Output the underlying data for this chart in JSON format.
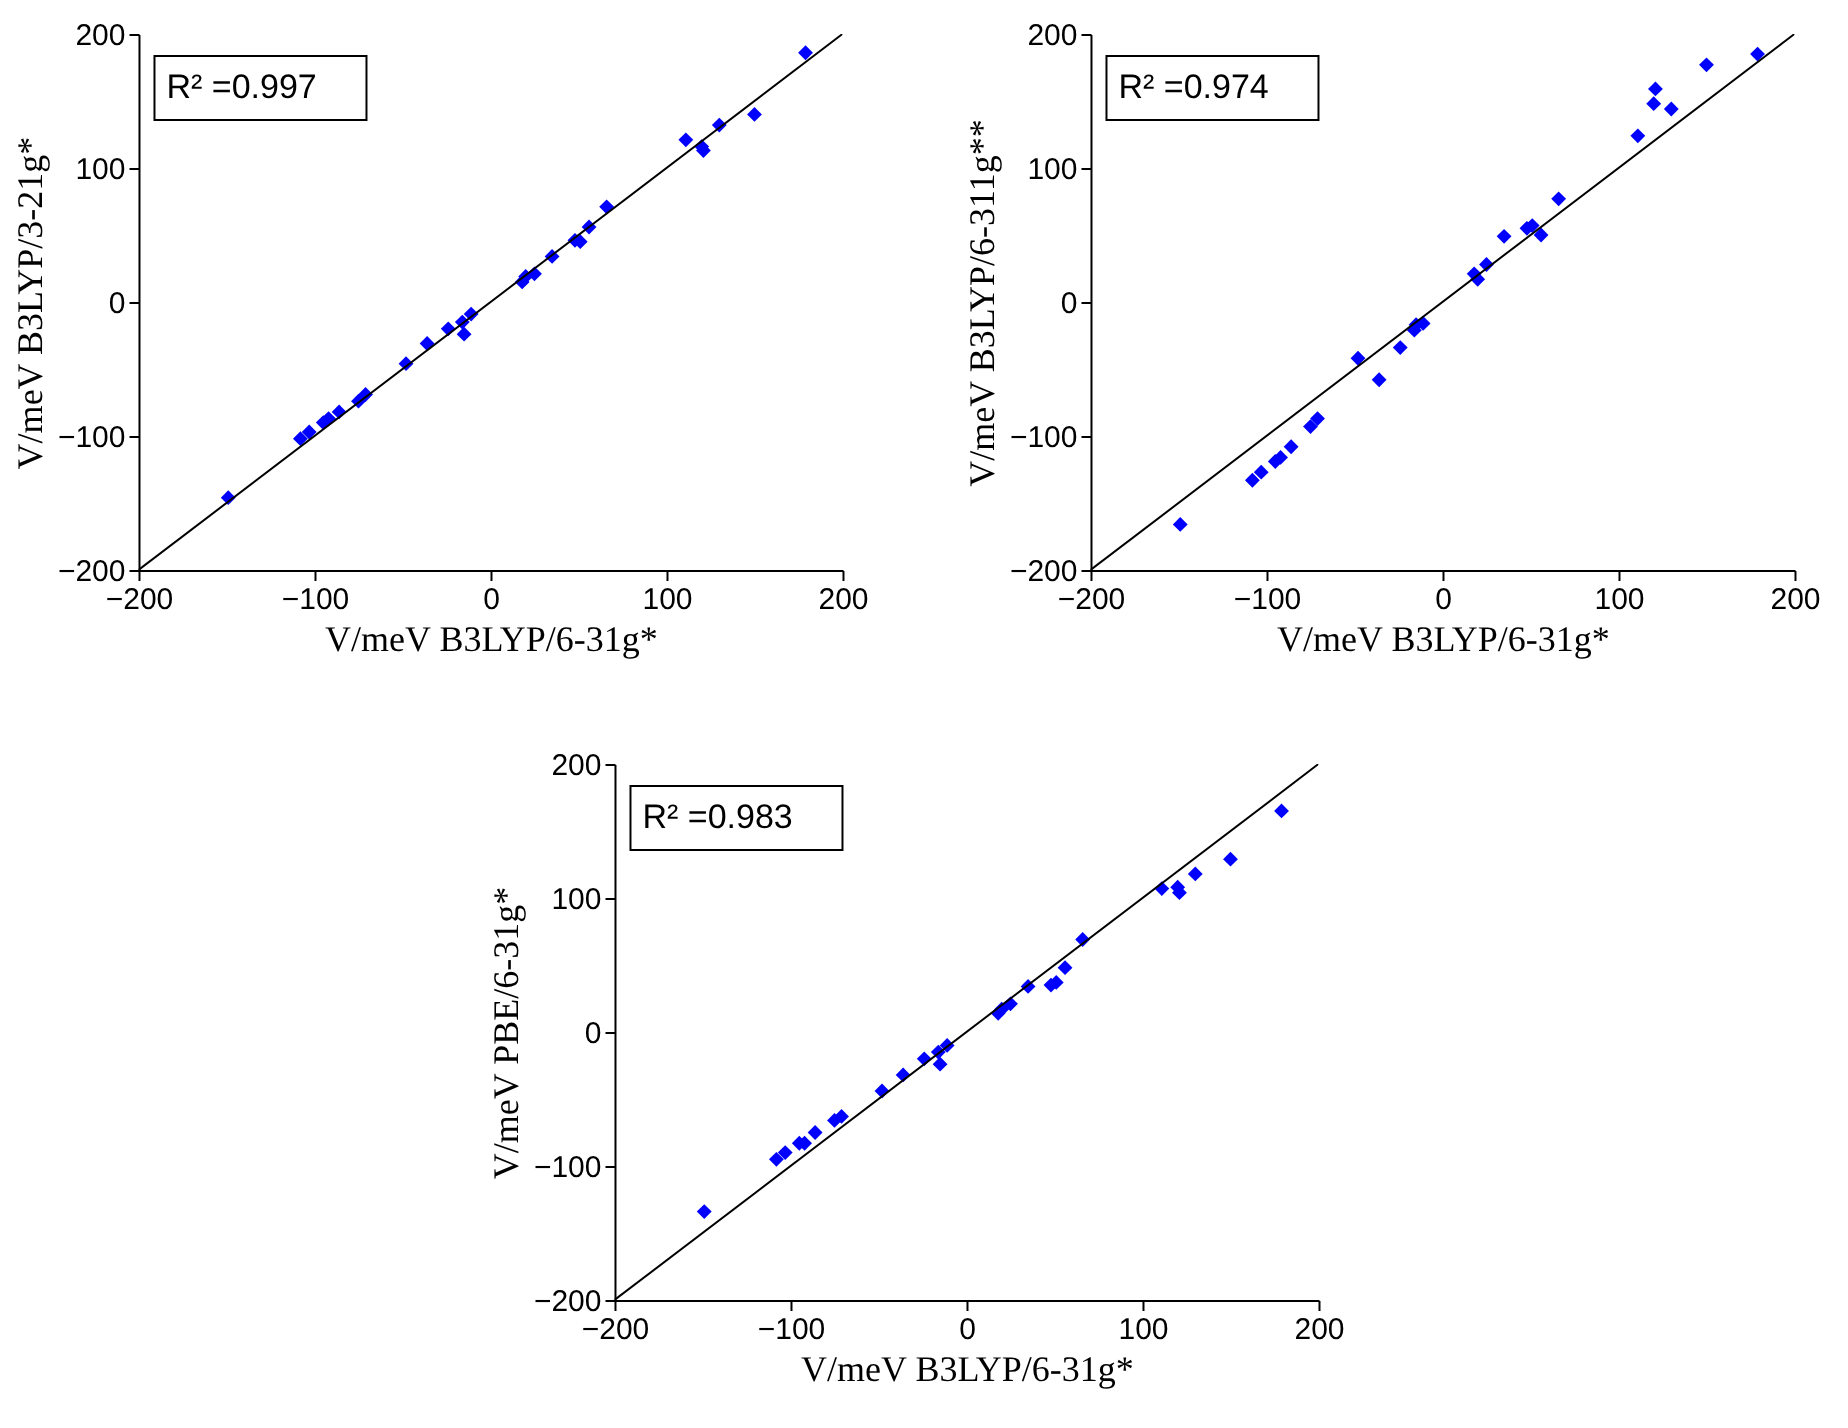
{
  "chart_data": [
    {
      "type": "scatter",
      "xlabel": "V/meV B3LYP/6-31g*",
      "ylabel": "V/meV B3LYP/3-21g*",
      "xlim": [
        -200,
        200
      ],
      "ylim": [
        -200,
        200
      ],
      "xticks": [
        -200,
        -100,
        0,
        100,
        200
      ],
      "yticks": [
        -200,
        -100,
        0,
        100,
        200
      ],
      "annotations": [
        "R² =0.997"
      ],
      "series": [
        {
          "color": "#0000ff",
          "marker": "diamond",
          "x": [
            -149,
            -108,
            -103,
            -95,
            -92,
            -86,
            -75,
            -71,
            -48,
            -36,
            -24,
            -16,
            -15,
            -11,
            18,
            20,
            25,
            35,
            48,
            51,
            56,
            66,
            111,
            120,
            121,
            130,
            150,
            179
          ],
          "values": [
            -146,
            -102,
            -97,
            -90,
            -87,
            -82,
            -74,
            -69,
            -46,
            -31,
            -20,
            -15,
            -24,
            -9,
            15,
            19,
            21,
            34,
            46,
            45,
            56,
            71,
            121,
            116,
            113,
            132,
            140,
            186
          ]
        },
        {
          "type": "line",
          "color": "#000000",
          "marker": "none",
          "x": [
            -200,
            200
          ],
          "values": [
            -200,
            200
          ]
        }
      ]
    },
    {
      "type": "scatter",
      "xlabel": "V/meV B3LYP/6-31g*",
      "ylabel": "V/meV B3LYP/6-311g**",
      "xlim": [
        -200,
        200
      ],
      "ylim": [
        -200,
        200
      ],
      "xticks": [
        -200,
        -100,
        0,
        100,
        200
      ],
      "yticks": [
        -200,
        -100,
        0,
        100,
        200
      ],
      "annotations": [
        "R² =0.974"
      ],
      "series": [
        {
          "color": "#0000ff",
          "marker": "diamond",
          "x": [
            -149,
            -108,
            -103,
            -95,
            -92,
            -86,
            -75,
            -71,
            -48,
            -36,
            -24,
            -16,
            -15,
            -11,
            18,
            20,
            25,
            35,
            48,
            51,
            56,
            66,
            111,
            120,
            121,
            130,
            150,
            179
          ],
          "values": [
            -166,
            -133,
            -127,
            -119,
            -116,
            -108,
            -93,
            -87,
            -42,
            -58,
            -34,
            -21,
            -17,
            -16,
            21,
            17,
            28,
            49,
            55,
            57,
            50,
            77,
            124,
            148,
            159,
            144,
            177,
            185
          ]
        },
        {
          "type": "line",
          "color": "#000000",
          "marker": "none",
          "x": [
            -200,
            200
          ],
          "values": [
            -200,
            200
          ]
        }
      ]
    },
    {
      "type": "scatter",
      "xlabel": "V/meV B3LYP/6-31g*",
      "ylabel": "V/meV PBE/6-31g*",
      "xlim": [
        -200,
        200
      ],
      "ylim": [
        -200,
        200
      ],
      "xticks": [
        -200,
        -100,
        0,
        100,
        200
      ],
      "yticks": [
        -200,
        -100,
        0,
        100,
        200
      ],
      "annotations": [
        "R² =0.983"
      ],
      "series": [
        {
          "color": "#0000ff",
          "marker": "diamond",
          "x": [
            -149,
            -108,
            -103,
            -95,
            -92,
            -86,
            -75,
            -71,
            -48,
            -36,
            -24,
            -16,
            -15,
            -11,
            18,
            20,
            25,
            35,
            48,
            51,
            56,
            66,
            111,
            120,
            121,
            130,
            150,
            179
          ],
          "values": [
            -134,
            -95,
            -90,
            -83,
            -83,
            -75,
            -66,
            -63,
            -44,
            -32,
            -20,
            -15,
            -24,
            -10,
            14,
            17,
            21,
            34,
            35,
            37,
            48,
            69,
            107,
            108,
            104,
            118,
            129,
            165
          ]
        },
        {
          "type": "line",
          "color": "#000000",
          "marker": "none",
          "x": [
            -200,
            200
          ],
          "values": [
            -200,
            200
          ]
        }
      ]
    }
  ]
}
